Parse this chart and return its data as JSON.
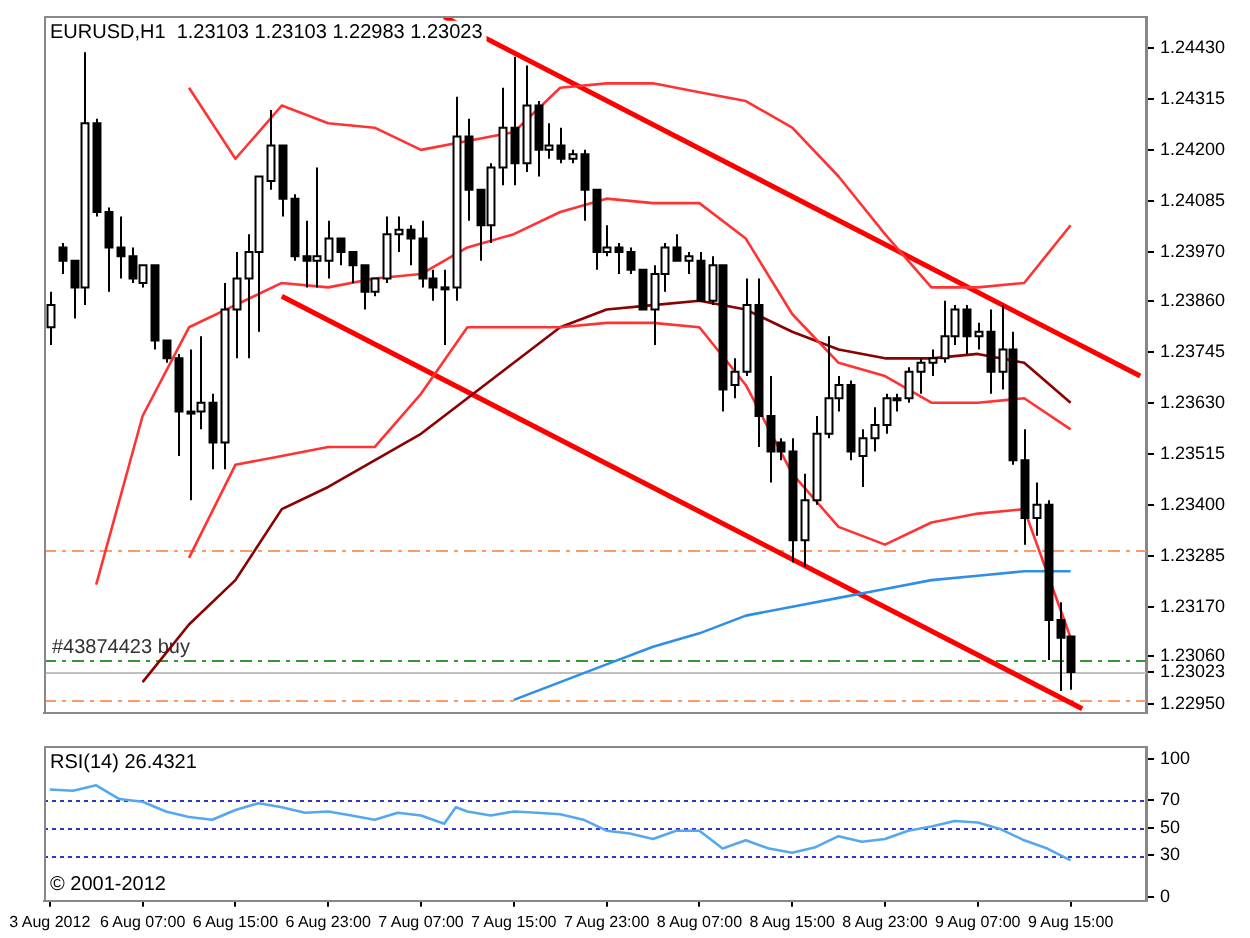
{
  "chart_data": [
    {
      "type": "candlestick",
      "title": "EURUSD,H1  1.23103 1.23103 1.22983 1.23023",
      "categories": [
        null,
        null,
        null,
        null,
        null,
        null,
        null,
        null,
        null,
        null,
        null,
        null,
        null,
        null,
        null,
        null,
        null,
        null,
        null,
        null,
        null,
        null,
        null,
        null,
        null,
        null,
        null,
        null,
        null,
        null,
        null,
        null,
        null,
        null,
        null,
        null,
        null,
        null,
        null,
        null,
        null,
        null,
        null,
        null,
        null,
        null,
        null,
        null,
        null,
        null,
        null,
        null,
        null,
        null,
        null,
        null,
        null,
        null,
        null,
        null,
        null,
        null,
        null,
        null,
        null,
        null,
        null,
        null,
        null,
        null,
        null,
        null,
        null,
        null,
        null,
        null,
        null,
        null,
        null,
        null,
        null,
        null,
        null,
        null,
        null,
        null,
        null,
        null,
        null,
        null,
        null,
        null,
        null,
        null,
        null
      ],
      "ohlc": [
        [
          1.238,
          1.2388,
          1.2376,
          1.2385
        ],
        [
          1.2398,
          1.2399,
          1.2392,
          1.2395
        ],
        [
          1.2395,
          1.2395,
          1.2382,
          1.2389
        ],
        [
          1.2389,
          1.2442,
          1.2385,
          1.2426
        ],
        [
          1.2426,
          1.2427,
          1.2405,
          1.2406
        ],
        [
          1.2406,
          1.2407,
          1.2388,
          1.2398
        ],
        [
          1.2398,
          1.2405,
          1.2391,
          1.2396
        ],
        [
          1.2396,
          1.2398,
          1.239,
          1.2391
        ],
        [
          1.239,
          1.2394,
          1.2389,
          1.2394
        ],
        [
          1.2394,
          1.2394,
          1.2375,
          1.2377
        ],
        [
          1.2377,
          1.2377,
          1.2372,
          1.2373
        ],
        [
          1.2373,
          1.2374,
          1.2351,
          1.2361
        ],
        [
          1.2361,
          1.2375,
          1.2341,
          1.2361
        ],
        [
          1.2361,
          1.2378,
          1.2357,
          1.2363
        ],
        [
          1.2363,
          1.2365,
          1.2348,
          1.2354
        ],
        [
          1.2354,
          1.239,
          1.2348,
          1.2384
        ],
        [
          1.2384,
          1.2397,
          1.2373,
          1.2391
        ],
        [
          1.2391,
          1.2401,
          1.2373,
          1.2397
        ],
        [
          1.2397,
          1.2414,
          1.2379,
          1.2414
        ],
        [
          1.2413,
          1.2429,
          1.2411,
          1.2421
        ],
        [
          1.2421,
          1.2421,
          1.2405,
          1.2409
        ],
        [
          1.2409,
          1.241,
          1.2395,
          1.2396
        ],
        [
          1.2396,
          1.2404,
          1.2389,
          1.2395
        ],
        [
          1.2395,
          1.2416,
          1.2389,
          1.2396
        ],
        [
          1.2395,
          1.2404,
          1.2391,
          1.24
        ],
        [
          1.24,
          1.24,
          1.2394,
          1.2397
        ],
        [
          1.2397,
          1.2397,
          1.239,
          1.2394
        ],
        [
          1.2394,
          1.2394,
          1.2384,
          1.2388
        ],
        [
          1.2388,
          1.2391,
          1.2387,
          1.2391
        ],
        [
          1.2391,
          1.2405,
          1.239,
          1.2401
        ],
        [
          1.2401,
          1.2405,
          1.2397,
          1.2402
        ],
        [
          1.2402,
          1.2403,
          1.2394,
          1.24
        ],
        [
          1.24,
          1.2404,
          1.2389,
          1.2391
        ],
        [
          1.2391,
          1.2393,
          1.2386,
          1.2389
        ],
        [
          1.2389,
          1.2393,
          1.2376,
          1.2389
        ],
        [
          1.2389,
          1.2432,
          1.2386,
          1.2423
        ],
        [
          1.2423,
          1.2427,
          1.2404,
          1.2411
        ],
        [
          1.2411,
          1.2411,
          1.2395,
          1.2403
        ],
        [
          1.2403,
          1.2417,
          1.2399,
          1.2416
        ],
        [
          1.2416,
          1.2434,
          1.2412,
          1.2425
        ],
        [
          1.2425,
          1.2441,
          1.2412,
          1.2417
        ],
        [
          1.2417,
          1.2439,
          1.2415,
          1.243
        ],
        [
          1.243,
          1.2431,
          1.2414,
          1.242
        ],
        [
          1.242,
          1.2426,
          1.2418,
          1.2421
        ],
        [
          1.2421,
          1.2425,
          1.2417,
          1.2418
        ],
        [
          1.2418,
          1.242,
          1.2417,
          1.2419
        ],
        [
          1.2419,
          1.242,
          1.2404,
          1.2411
        ],
        [
          1.2411,
          1.2411,
          1.2393,
          1.2397
        ],
        [
          1.2397,
          1.2403,
          1.2396,
          1.2398
        ],
        [
          1.2398,
          1.2399,
          1.2392,
          1.2397
        ],
        [
          1.2397,
          1.2398,
          1.2392,
          1.2393
        ],
        [
          1.2393,
          1.2393,
          1.2384,
          1.2384
        ],
        [
          1.2384,
          1.2394,
          1.2376,
          1.2392
        ],
        [
          1.2392,
          1.2399,
          1.2388,
          1.2398
        ],
        [
          1.2398,
          1.2401,
          1.2395,
          1.2395
        ],
        [
          1.2395,
          1.2397,
          1.2392,
          1.2396
        ],
        [
          1.2395,
          1.2397,
          1.2386,
          1.2386
        ],
        [
          1.2386,
          1.2396,
          1.2385,
          1.2394
        ],
        [
          1.2394,
          1.2394,
          1.2361,
          1.2366
        ],
        [
          1.2367,
          1.2373,
          1.2364,
          1.237
        ],
        [
          1.237,
          1.2391,
          1.2369,
          1.2385
        ],
        [
          1.2385,
          1.2391,
          1.2353,
          1.236
        ],
        [
          1.236,
          1.2369,
          1.2345,
          1.2352
        ],
        [
          1.2354,
          1.2355,
          1.235,
          1.2352
        ],
        [
          1.2352,
          1.2355,
          1.2327,
          1.2332
        ],
        [
          1.2332,
          1.2347,
          1.2326,
          1.2341
        ],
        [
          1.2341,
          1.236,
          1.234,
          1.2356
        ],
        [
          1.2356,
          1.2378,
          1.2355,
          1.2364
        ],
        [
          1.2364,
          1.2369,
          1.2361,
          1.2367
        ],
        [
          1.2367,
          1.2368,
          1.235,
          1.2352
        ],
        [
          1.2351,
          1.2357,
          1.2344,
          1.2355
        ],
        [
          1.2355,
          1.2362,
          1.2352,
          1.2358
        ],
        [
          1.2358,
          1.2365,
          1.2356,
          1.2364
        ],
        [
          1.2364,
          1.2365,
          1.2361,
          1.2364
        ],
        [
          1.2364,
          1.2371,
          1.2363,
          1.237
        ],
        [
          1.237,
          1.2373,
          1.2365,
          1.2372
        ],
        [
          1.2372,
          1.2375,
          1.2369,
          1.2373
        ],
        [
          1.2373,
          1.2386,
          1.2372,
          1.2378
        ],
        [
          1.2378,
          1.2385,
          1.2376,
          1.2384
        ],
        [
          1.2384,
          1.2385,
          1.2374,
          1.2378
        ],
        [
          1.2378,
          1.2381,
          1.2375,
          1.2379
        ],
        [
          1.2379,
          1.2384,
          1.2365,
          1.237
        ],
        [
          1.237,
          1.2385,
          1.2366,
          1.2375
        ],
        [
          1.2375,
          1.2379,
          1.2349,
          1.235
        ],
        [
          1.235,
          1.2357,
          1.2331,
          1.2337
        ],
        [
          1.2337,
          1.2345,
          1.2333,
          1.234
        ],
        [
          1.234,
          1.2341,
          1.2305,
          1.2314
        ],
        [
          1.2314,
          1.2318,
          1.2298,
          1.231
        ],
        [
          1.23103,
          1.23103,
          1.22983,
          1.23023
        ],
        null,
        null,
        null,
        null,
        null,
        null
      ],
      "series": [
        {
          "type": "line",
          "color": "#ff3333",
          "values": [
            null,
            null,
            null,
            null,
            null,
            null,
            null,
            null,
            null,
            null,
            null,
            null,
            1.2434,
            null,
            null,
            null,
            1.2418,
            null,
            null,
            null,
            1.243,
            null,
            null,
            null,
            1.2426,
            null,
            null,
            null,
            1.2425,
            null,
            null,
            null,
            1.242,
            null,
            null,
            null,
            1.2422,
            null,
            null,
            null,
            1.2424,
            null,
            null,
            null,
            1.2434,
            null,
            null,
            null,
            1.2435,
            null,
            null,
            null,
            1.2435,
            null,
            null,
            null,
            1.2433,
            null,
            null,
            null,
            1.2431,
            null,
            null,
            null,
            1.2425,
            null,
            null,
            null,
            1.2414,
            null,
            null,
            null,
            1.2401,
            null,
            null,
            null,
            1.2389,
            null,
            null,
            null,
            1.2389,
            null,
            null,
            null,
            1.239,
            null,
            null,
            null,
            1.2403,
            null,
            null,
            null,
            null,
            null,
            null
          ]
        },
        {
          "type": "line",
          "color": "#ff3333",
          "values": [
            null,
            null,
            null,
            null,
            1.2322,
            null,
            null,
            null,
            1.236,
            null,
            null,
            null,
            1.238,
            null,
            null,
            null,
            1.2385,
            null,
            null,
            null,
            1.239,
            null,
            null,
            null,
            1.2389,
            null,
            null,
            null,
            1.2391,
            null,
            null,
            null,
            1.2392,
            null,
            null,
            null,
            1.2398,
            null,
            null,
            null,
            1.2401,
            null,
            null,
            null,
            1.2406,
            null,
            null,
            null,
            1.2409,
            null,
            null,
            null,
            1.2408,
            null,
            null,
            null,
            1.2408,
            null,
            null,
            null,
            1.24,
            null,
            null,
            null,
            1.2383,
            null,
            null,
            null,
            1.2372,
            null,
            null,
            null,
            1.2369,
            null,
            null,
            null,
            1.2363,
            null,
            null,
            null,
            1.2363,
            null,
            null,
            null,
            1.2364,
            null,
            null,
            null,
            1.2357,
            null,
            null,
            null,
            null,
            null,
            null
          ]
        },
        {
          "type": "line",
          "color": "#ff3333",
          "values": [
            null,
            null,
            null,
            null,
            null,
            null,
            null,
            null,
            null,
            null,
            null,
            null,
            1.2328,
            null,
            null,
            null,
            1.2349,
            null,
            null,
            null,
            1.2351,
            null,
            null,
            null,
            1.2353,
            null,
            null,
            null,
            1.2353,
            null,
            null,
            null,
            1.2365,
            null,
            null,
            null,
            1.238,
            null,
            null,
            null,
            1.238,
            null,
            null,
            null,
            1.238,
            null,
            null,
            null,
            1.2381,
            null,
            null,
            null,
            1.2381,
            null,
            null,
            null,
            1.238,
            null,
            null,
            null,
            1.2367,
            null,
            null,
            null,
            1.2347,
            null,
            null,
            null,
            1.2335,
            null,
            null,
            null,
            1.2331,
            null,
            null,
            null,
            1.2336,
            null,
            null,
            null,
            1.2338,
            null,
            null,
            null,
            1.2339,
            null,
            null,
            null,
            1.231,
            null,
            null,
            null,
            null,
            null,
            null
          ]
        },
        {
          "type": "line",
          "color": "#8b0000",
          "values": [
            null,
            null,
            null,
            null,
            null,
            null,
            null,
            null,
            1.23,
            null,
            null,
            null,
            1.2313,
            null,
            null,
            null,
            1.2323,
            null,
            null,
            null,
            1.2339,
            null,
            null,
            null,
            1.2344,
            null,
            null,
            null,
            1.235,
            null,
            null,
            null,
            1.2356,
            null,
            null,
            null,
            1.2364,
            null,
            null,
            null,
            1.2372,
            null,
            null,
            null,
            1.238,
            null,
            null,
            null,
            1.2384,
            null,
            null,
            null,
            1.2385,
            null,
            null,
            null,
            1.2386,
            null,
            null,
            null,
            1.2384,
            null,
            null,
            null,
            1.2379,
            null,
            null,
            null,
            1.2375,
            null,
            null,
            null,
            1.2373,
            null,
            null,
            null,
            1.2373,
            null,
            null,
            null,
            1.2374,
            null,
            null,
            null,
            1.2372,
            null,
            null,
            null,
            1.2363,
            null,
            null,
            null,
            null,
            null,
            null
          ]
        },
        {
          "type": "line",
          "color": "#2f8fe6",
          "values": [
            null,
            null,
            null,
            null,
            null,
            null,
            null,
            null,
            null,
            null,
            null,
            null,
            null,
            null,
            null,
            null,
            null,
            null,
            null,
            null,
            null,
            null,
            null,
            null,
            null,
            null,
            null,
            null,
            null,
            null,
            null,
            null,
            null,
            null,
            null,
            null,
            null,
            null,
            null,
            null,
            1.2296,
            null,
            null,
            null,
            1.23,
            null,
            null,
            null,
            1.2304,
            null,
            null,
            null,
            1.2308,
            null,
            null,
            null,
            1.2311,
            null,
            null,
            null,
            1.2315,
            null,
            null,
            null,
            1.2317,
            null,
            null,
            null,
            1.2319,
            null,
            null,
            null,
            1.2321,
            null,
            null,
            null,
            1.2323,
            null,
            null,
            null,
            1.2324,
            null,
            null,
            null,
            1.2325,
            null,
            null,
            null,
            1.2325,
            null,
            null,
            null,
            null,
            null,
            null
          ]
        },
        {
          "type": "line",
          "color": "#ff0000",
          "values": [
            null,
            null,
            null,
            null,
            null,
            null,
            null,
            null,
            null,
            null,
            null,
            null,
            null,
            null,
            null,
            null,
            null,
            null,
            null,
            null,
            null,
            null,
            null,
            null,
            null,
            null,
            null,
            null,
            null,
            null,
            null,
            null,
            null,
            null,
            1.245,
            null,
            null,
            null,
            null,
            null,
            null,
            null,
            null,
            null,
            null,
            null,
            null,
            null,
            null,
            null,
            null,
            null,
            null,
            null,
            null,
            null,
            null,
            null,
            null,
            null,
            null,
            null,
            null,
            null,
            null,
            null,
            null,
            null,
            null,
            null,
            null,
            null,
            null,
            null,
            null,
            null,
            null,
            null,
            null,
            null,
            null,
            null,
            null,
            null,
            null,
            null,
            null,
            null,
            null,
            null,
            null,
            null,
            null,
            null,
            1.2369
          ]
        },
        {
          "type": "line",
          "color": "#ff0000",
          "values": [
            null,
            null,
            null,
            null,
            null,
            null,
            null,
            null,
            null,
            null,
            null,
            null,
            null,
            null,
            null,
            null,
            null,
            null,
            null,
            null,
            1.2387,
            null,
            null,
            null,
            null,
            null,
            null,
            null,
            null,
            null,
            null,
            null,
            null,
            null,
            null,
            null,
            null,
            null,
            null,
            null,
            null,
            null,
            null,
            null,
            null,
            null,
            null,
            null,
            null,
            null,
            null,
            null,
            null,
            null,
            null,
            null,
            null,
            null,
            null,
            null,
            null,
            null,
            null,
            null,
            null,
            null,
            null,
            null,
            null,
            null,
            null,
            null,
            null,
            null,
            null,
            null,
            null,
            null,
            null,
            null,
            null,
            null,
            null,
            null,
            null,
            null,
            null,
            null,
            null,
            1.2294,
            null,
            null,
            null,
            null,
            null
          ]
        }
      ],
      "ylim": [
        1.2293,
        1.245
      ],
      "yticks": [
        {
          "value": 1.2443,
          "label": "1.24430"
        },
        {
          "value": 1.24315,
          "label": "1.24315"
        },
        {
          "value": 1.242,
          "label": "1.24200"
        },
        {
          "value": 1.24085,
          "label": "1.24085"
        },
        {
          "value": 1.2397,
          "label": "1.23970"
        },
        {
          "value": 1.2386,
          "label": "1.23860"
        },
        {
          "value": 1.23745,
          "label": "1.23745"
        },
        {
          "value": 1.2363,
          "label": "1.23630"
        },
        {
          "value": 1.23515,
          "label": "1.23515"
        },
        {
          "value": 1.234,
          "label": "1.23400"
        },
        {
          "value": 1.23285,
          "label": "1.23285"
        },
        {
          "value": 1.2317,
          "label": "1.23170"
        },
        {
          "value": 1.2306,
          "label": "1.23060"
        },
        {
          "value": 1.23023,
          "label": "1.23023"
        },
        {
          "value": 1.2295,
          "label": "1.22950"
        }
      ],
      "ref_lines": [
        {
          "axis": "y",
          "value": 1.233,
          "color": "#ff9966",
          "line_style": "dashed"
        },
        {
          "axis": "y",
          "value": 1.2305,
          "label": "#43874423 buy",
          "color": "#339933",
          "line_style": "dashed"
        },
        {
          "axis": "y",
          "value": 1.2296,
          "color": "#ff9966",
          "line_style": "dashed"
        },
        {
          "axis": "y",
          "value": 1.23023,
          "color": "#c0c0c0",
          "line_style": "solid"
        }
      ],
      "tick_labels": "y",
      "grid": false,
      "legend": false
    },
    {
      "type": "line",
      "title": "RSI(14) 26.4321",
      "categories": [
        "3 Aug 2012",
        null,
        null,
        null,
        null,
        null,
        null,
        null,
        "6 Aug 07:00",
        null,
        null,
        null,
        null,
        null,
        null,
        null,
        "6 Aug 15:00",
        null,
        null,
        null,
        null,
        null,
        null,
        null,
        "6 Aug 23:00",
        null,
        null,
        null,
        null,
        null,
        null,
        null,
        "7 Aug 07:00",
        null,
        null,
        null,
        null,
        null,
        null,
        null,
        "7 Aug 15:00",
        null,
        null,
        null,
        null,
        null,
        null,
        null,
        "7 Aug 23:00",
        null,
        null,
        null,
        null,
        null,
        null,
        null,
        "8 Aug 07:00",
        null,
        null,
        null,
        null,
        null,
        null,
        null,
        "8 Aug 15:00",
        null,
        null,
        null,
        null,
        null,
        null,
        null,
        "8 Aug 23:00",
        null,
        null,
        null,
        null,
        null,
        null,
        null,
        "9 Aug 07:00",
        null,
        null,
        null,
        null,
        null,
        null,
        null,
        "9 Aug 15:00",
        null,
        null,
        null,
        null,
        null,
        null
      ],
      "series": [
        {
          "color": "#56a8ee",
          "values": [
            78,
            null,
            77,
            null,
            81,
            null,
            71,
            null,
            69,
            null,
            62,
            null,
            58,
            null,
            56,
            null,
            63,
            null,
            68,
            null,
            65,
            null,
            61,
            null,
            62,
            null,
            59,
            null,
            56,
            null,
            61,
            null,
            59,
            null,
            53,
            65,
            62,
            null,
            59,
            null,
            62,
            null,
            61,
            null,
            60,
            null,
            56,
            null,
            48,
            null,
            46,
            null,
            42,
            null,
            48,
            null,
            48,
            null,
            35,
            null,
            41,
            null,
            35,
            null,
            32,
            null,
            36,
            null,
            44,
            null,
            40,
            null,
            42,
            null,
            48,
            null,
            51,
            null,
            55,
            null,
            54,
            null,
            49,
            null,
            41,
            null,
            35,
            null,
            26.4321,
            null,
            null,
            null,
            null,
            null,
            null
          ]
        }
      ],
      "ylim": [
        -3,
        109
      ],
      "yticks": [
        0,
        30,
        50,
        70,
        100
      ],
      "ref_lines": [
        {
          "axis": "y",
          "value": 30,
          "color": "#3333cc",
          "line_style": "dotted"
        },
        {
          "axis": "y",
          "value": 50,
          "color": "#3333cc",
          "line_style": "dotted"
        },
        {
          "axis": "y",
          "value": 70,
          "color": "#3333cc",
          "line_style": "dotted"
        }
      ],
      "annotations": [
        "© 2001-2012"
      ],
      "grid": false,
      "legend": false
    }
  ]
}
